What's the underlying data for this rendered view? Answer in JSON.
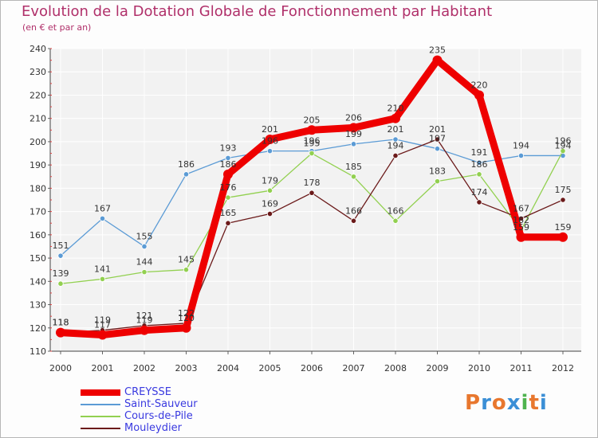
{
  "title": "Evolution de la Dotation Globale de Fonctionnement par Habitant",
  "subtitle": "(en € et par an)",
  "logo": {
    "text": "Proxiti",
    "colors": [
      "#e8772e",
      "#3b8fd6",
      "#e8772e",
      "#3b8fd6",
      "#4fb34f",
      "#e8772e",
      "#3b8fd6"
    ]
  },
  "chart_data": {
    "type": "line",
    "title": "Evolution de la Dotation Globale de Fonctionnement par Habitant",
    "ylabel": "(en € et par an)",
    "xlabel": "",
    "ylim": [
      110,
      240
    ],
    "yticks": [
      110,
      120,
      130,
      140,
      150,
      160,
      170,
      180,
      190,
      200,
      210,
      220,
      230,
      240
    ],
    "x": [
      "2000",
      "2001",
      "2002",
      "2003",
      "2004",
      "2005",
      "2006",
      "2007",
      "2008",
      "2009",
      "2010",
      "2011",
      "2012"
    ],
    "grid": true,
    "series": [
      {
        "name": "CREYSSE",
        "color": "#ee0000",
        "values": [
          118,
          117,
          119,
          120,
          186,
          201,
          205,
          206,
          210,
          235,
          220,
          159,
          159
        ]
      },
      {
        "name": "Saint-Sauveur",
        "color": "#5b9bd5",
        "values": [
          151,
          167,
          155,
          186,
          193,
          196,
          196,
          199,
          201,
          197,
          191,
          194,
          194
        ]
      },
      {
        "name": "Cours-de-Pile",
        "color": "#92d050",
        "values": [
          139,
          141,
          144,
          145,
          176,
          179,
          195,
          185,
          166,
          183,
          186,
          162,
          196
        ]
      },
      {
        "name": "Mouleydier",
        "color": "#6b1a1a",
        "values": [
          118,
          119,
          121,
          122,
          165,
          169,
          178,
          166,
          194,
          201,
          174,
          167,
          175
        ]
      }
    ],
    "labels": [
      [
        "118",
        "117",
        "119",
        "120",
        "186",
        "201",
        "205",
        "206",
        "210",
        "235",
        "220",
        "159",
        "159"
      ],
      [
        "151",
        "167",
        "155",
        "186",
        "193",
        "196",
        "196",
        "199",
        "201",
        "197",
        "191",
        "194",
        "194"
      ],
      [
        "139",
        "141",
        "144",
        "145",
        "176",
        "179",
        "195",
        "185",
        "166",
        "183",
        "186",
        "162",
        "196"
      ],
      [
        "118",
        "119",
        "121",
        "122",
        "165",
        "169",
        "178",
        "166",
        "194",
        "201",
        "174",
        "167",
        "175"
      ]
    ]
  }
}
